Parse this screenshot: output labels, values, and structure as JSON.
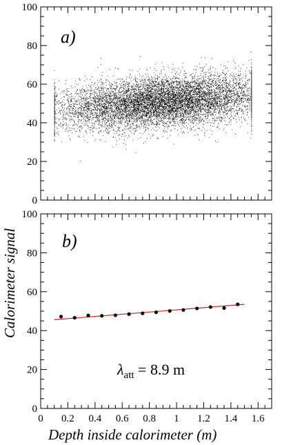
{
  "figure": {
    "ylabel": "Calorimeter signal",
    "xlabel": "Depth inside calorimeter (m)"
  },
  "chart_data": [
    {
      "type": "scatter",
      "panel_label": "a)",
      "title": "",
      "xlim": [
        0,
        1.7
      ],
      "ylim": [
        0,
        100
      ],
      "xticks": [
        0,
        0.2,
        0.4,
        0.6,
        0.8,
        1.0,
        1.2,
        1.4,
        1.6
      ],
      "yticks": [
        0,
        20,
        40,
        60,
        80,
        100
      ],
      "ytick_labels": [
        "0",
        "20",
        "40",
        "60",
        "80",
        "100"
      ],
      "show_x_tick_labels": false,
      "grid": false,
      "density": {
        "x_range": [
          0.1,
          1.55
        ],
        "y_center_at_x0": 46,
        "y_slope": 5.5,
        "y_spread": 6.5,
        "approx_points": 9000
      }
    },
    {
      "type": "scatter",
      "panel_label": "b)",
      "title": "",
      "xlim": [
        0,
        1.7
      ],
      "ylim": [
        0,
        100
      ],
      "xticks": [
        0,
        0.2,
        0.4,
        0.6,
        0.8,
        1.0,
        1.2,
        1.4,
        1.6
      ],
      "xtick_labels": [
        "0",
        "0.2",
        "0.4",
        "0.6",
        "0.8",
        "1",
        "1.2",
        "1.4",
        "1.6"
      ],
      "yticks": [
        0,
        20,
        40,
        60,
        80,
        100
      ],
      "ytick_labels": [
        "0",
        "20",
        "40",
        "60",
        "80",
        "100"
      ],
      "grid": false,
      "points": {
        "x": [
          0.15,
          0.25,
          0.35,
          0.45,
          0.55,
          0.65,
          0.75,
          0.85,
          0.95,
          1.05,
          1.15,
          1.25,
          1.35,
          1.45
        ],
        "y": [
          47.2,
          46.6,
          47.8,
          47.6,
          47.9,
          48.5,
          48.9,
          49.4,
          50.1,
          50.6,
          51.4,
          52.1,
          51.6,
          53.5
        ]
      },
      "fit": {
        "x": [
          0.1,
          1.5
        ],
        "y": [
          45.6,
          53.5
        ],
        "color": "#cc2222"
      },
      "annotation": {
        "symbol": "λ",
        "subscript": "att",
        "text": " = 8.9 m"
      }
    }
  ]
}
